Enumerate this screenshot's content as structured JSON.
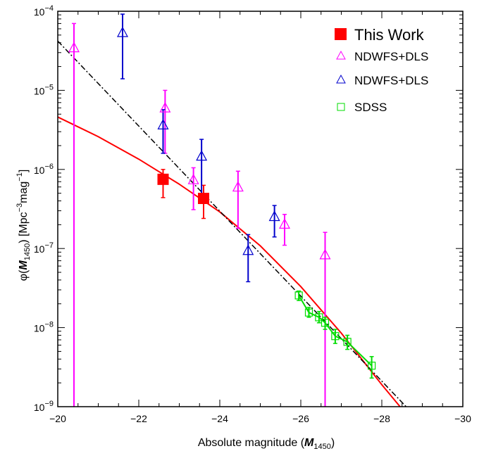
{
  "chart_data": {
    "type": "scatter",
    "xlabel_prefix": "Absolute magnitude (",
    "xlabel_var": "M",
    "xlabel_sub": "1450",
    "xlabel_suffix": ")",
    "ylabel_var": "M",
    "ylabel_sub": "1450",
    "ylabel_units": "[Mpc",
    "ylabel_exp1": "−3",
    "ylabel_mag": "mag",
    "ylabel_exp2": "−1",
    "ylabel_close": "]",
    "ylabel_phi": "φ(",
    "xlim": [
      -20,
      -30
    ],
    "ylim_log10": [
      -9,
      -4
    ],
    "x_tick_labels": [
      "−20",
      "−22",
      "−24",
      "−26",
      "−28",
      "−30"
    ],
    "x_ticks": [
      -20,
      -22,
      -24,
      -26,
      -28,
      -30
    ],
    "y_tick_mantissa": "10",
    "y_tick_exponents": [
      "−9",
      "−8",
      "−7",
      "−6",
      "−5",
      "−4"
    ],
    "y_ticks_log10": [
      -9,
      -8,
      -7,
      -6,
      -5,
      -4
    ],
    "legend": [
      {
        "label": "This Work",
        "marker": "filled-square",
        "color": "#ff0000"
      },
      {
        "label": "NDWFS+DLS",
        "marker": "triangle",
        "color": "#ff00ff"
      },
      {
        "label": "NDWFS+DLS",
        "marker": "triangle",
        "color": "#0000cc"
      },
      {
        "label": "SDSS",
        "marker": "square",
        "color": "#00dd00"
      }
    ],
    "series": [
      {
        "name": "This Work",
        "marker": "filled-square",
        "color": "#ff0000",
        "points": [
          {
            "x": -22.6,
            "y": 7.5e-07,
            "ylo": 4.4e-07,
            "yhi": 1e-06
          },
          {
            "x": -23.6,
            "y": 4.3e-07,
            "ylo": 2.4e-07,
            "yhi": 6.3e-07
          }
        ]
      },
      {
        "name": "NDWFS+DLS",
        "marker": "triangle",
        "color": "#ff00ff",
        "points": [
          {
            "x": -20.4,
            "y": 3.4e-05,
            "ylo": 1e-09,
            "yhi": 7e-05
          },
          {
            "x": -22.65,
            "y": 5.9e-06,
            "ylo": 1.6e-06,
            "yhi": 1e-05
          },
          {
            "x": -23.35,
            "y": 7.3e-07,
            "ylo": 3.1e-07,
            "yhi": 1.05e-06
          },
          {
            "x": -24.45,
            "y": 5.9e-07,
            "ylo": 1.8e-07,
            "yhi": 9.5e-07
          },
          {
            "x": -25.6,
            "y": 2e-07,
            "ylo": 1.1e-07,
            "yhi": 2.7e-07
          },
          {
            "x": -26.6,
            "y": 8.2e-08,
            "ylo": 1e-09,
            "yhi": 1.6e-07
          }
        ]
      },
      {
        "name": "NDWFS+DLS",
        "marker": "triangle",
        "color": "#0000cc",
        "points": [
          {
            "x": -21.6,
            "y": 5.3e-05,
            "ylo": 1.4e-05,
            "yhi": 9.2e-05
          },
          {
            "x": -22.6,
            "y": 3.6e-06,
            "ylo": 1.6e-06,
            "yhi": 5.7e-06
          },
          {
            "x": -23.55,
            "y": 1.45e-06,
            "ylo": 4.5e-07,
            "yhi": 2.4e-06
          },
          {
            "x": -24.7,
            "y": 9.3e-08,
            "ylo": 3.8e-08,
            "yhi": 1.5e-07
          },
          {
            "x": -25.35,
            "y": 2.5e-07,
            "ylo": 1.4e-07,
            "yhi": 3.5e-07
          }
        ]
      },
      {
        "name": "SDSS",
        "marker": "square",
        "color": "#00dd00",
        "points": [
          {
            "x": -25.95,
            "y": 2.55e-08,
            "ylo": 2.2e-08,
            "yhi": 2.9e-08
          },
          {
            "x": -26.2,
            "y": 1.55e-08,
            "ylo": 1.35e-08,
            "yhi": 1.8e-08
          },
          {
            "x": -26.45,
            "y": 1.35e-08,
            "ylo": 1.15e-08,
            "yhi": 1.6e-08
          },
          {
            "x": -26.6,
            "y": 1.15e-08,
            "ylo": 9.5e-09,
            "yhi": 1.35e-08
          },
          {
            "x": -26.85,
            "y": 7.8e-09,
            "ylo": 6.3e-09,
            "yhi": 9.5e-09
          },
          {
            "x": -27.15,
            "y": 6.6e-09,
            "ylo": 5.3e-09,
            "yhi": 8e-09
          },
          {
            "x": -27.75,
            "y": 3.3e-09,
            "ylo": 2.3e-09,
            "yhi": 4.3e-09
          }
        ]
      }
    ],
    "lines": [
      {
        "style": "solid",
        "color": "#ff0000",
        "points": [
          [
            -20,
            4.6e-06
          ],
          [
            -21,
            2.6e-06
          ],
          [
            -22,
            1.35e-06
          ],
          [
            -23,
            6.5e-07
          ],
          [
            -24,
            2.9e-07
          ],
          [
            -25,
            1.08e-07
          ],
          [
            -26,
            3.3e-08
          ],
          [
            -27,
            8.5e-09
          ],
          [
            -28,
            1.9e-09
          ],
          [
            -28.45,
            1e-09
          ]
        ]
      },
      {
        "style": "dash-dot",
        "color": "#000000",
        "points": [
          [
            -20,
            4.2e-05
          ],
          [
            -28.6,
            1e-09
          ]
        ]
      },
      {
        "style": "solid",
        "color": "#00dd00",
        "points": [
          [
            -25.95,
            2.55e-08
          ],
          [
            -26.2,
            1.55e-08
          ],
          [
            -26.45,
            1.35e-08
          ],
          [
            -26.6,
            1.15e-08
          ],
          [
            -26.85,
            7.8e-09
          ],
          [
            -27.15,
            6.6e-09
          ],
          [
            -27.75,
            3.3e-09
          ]
        ]
      }
    ]
  }
}
